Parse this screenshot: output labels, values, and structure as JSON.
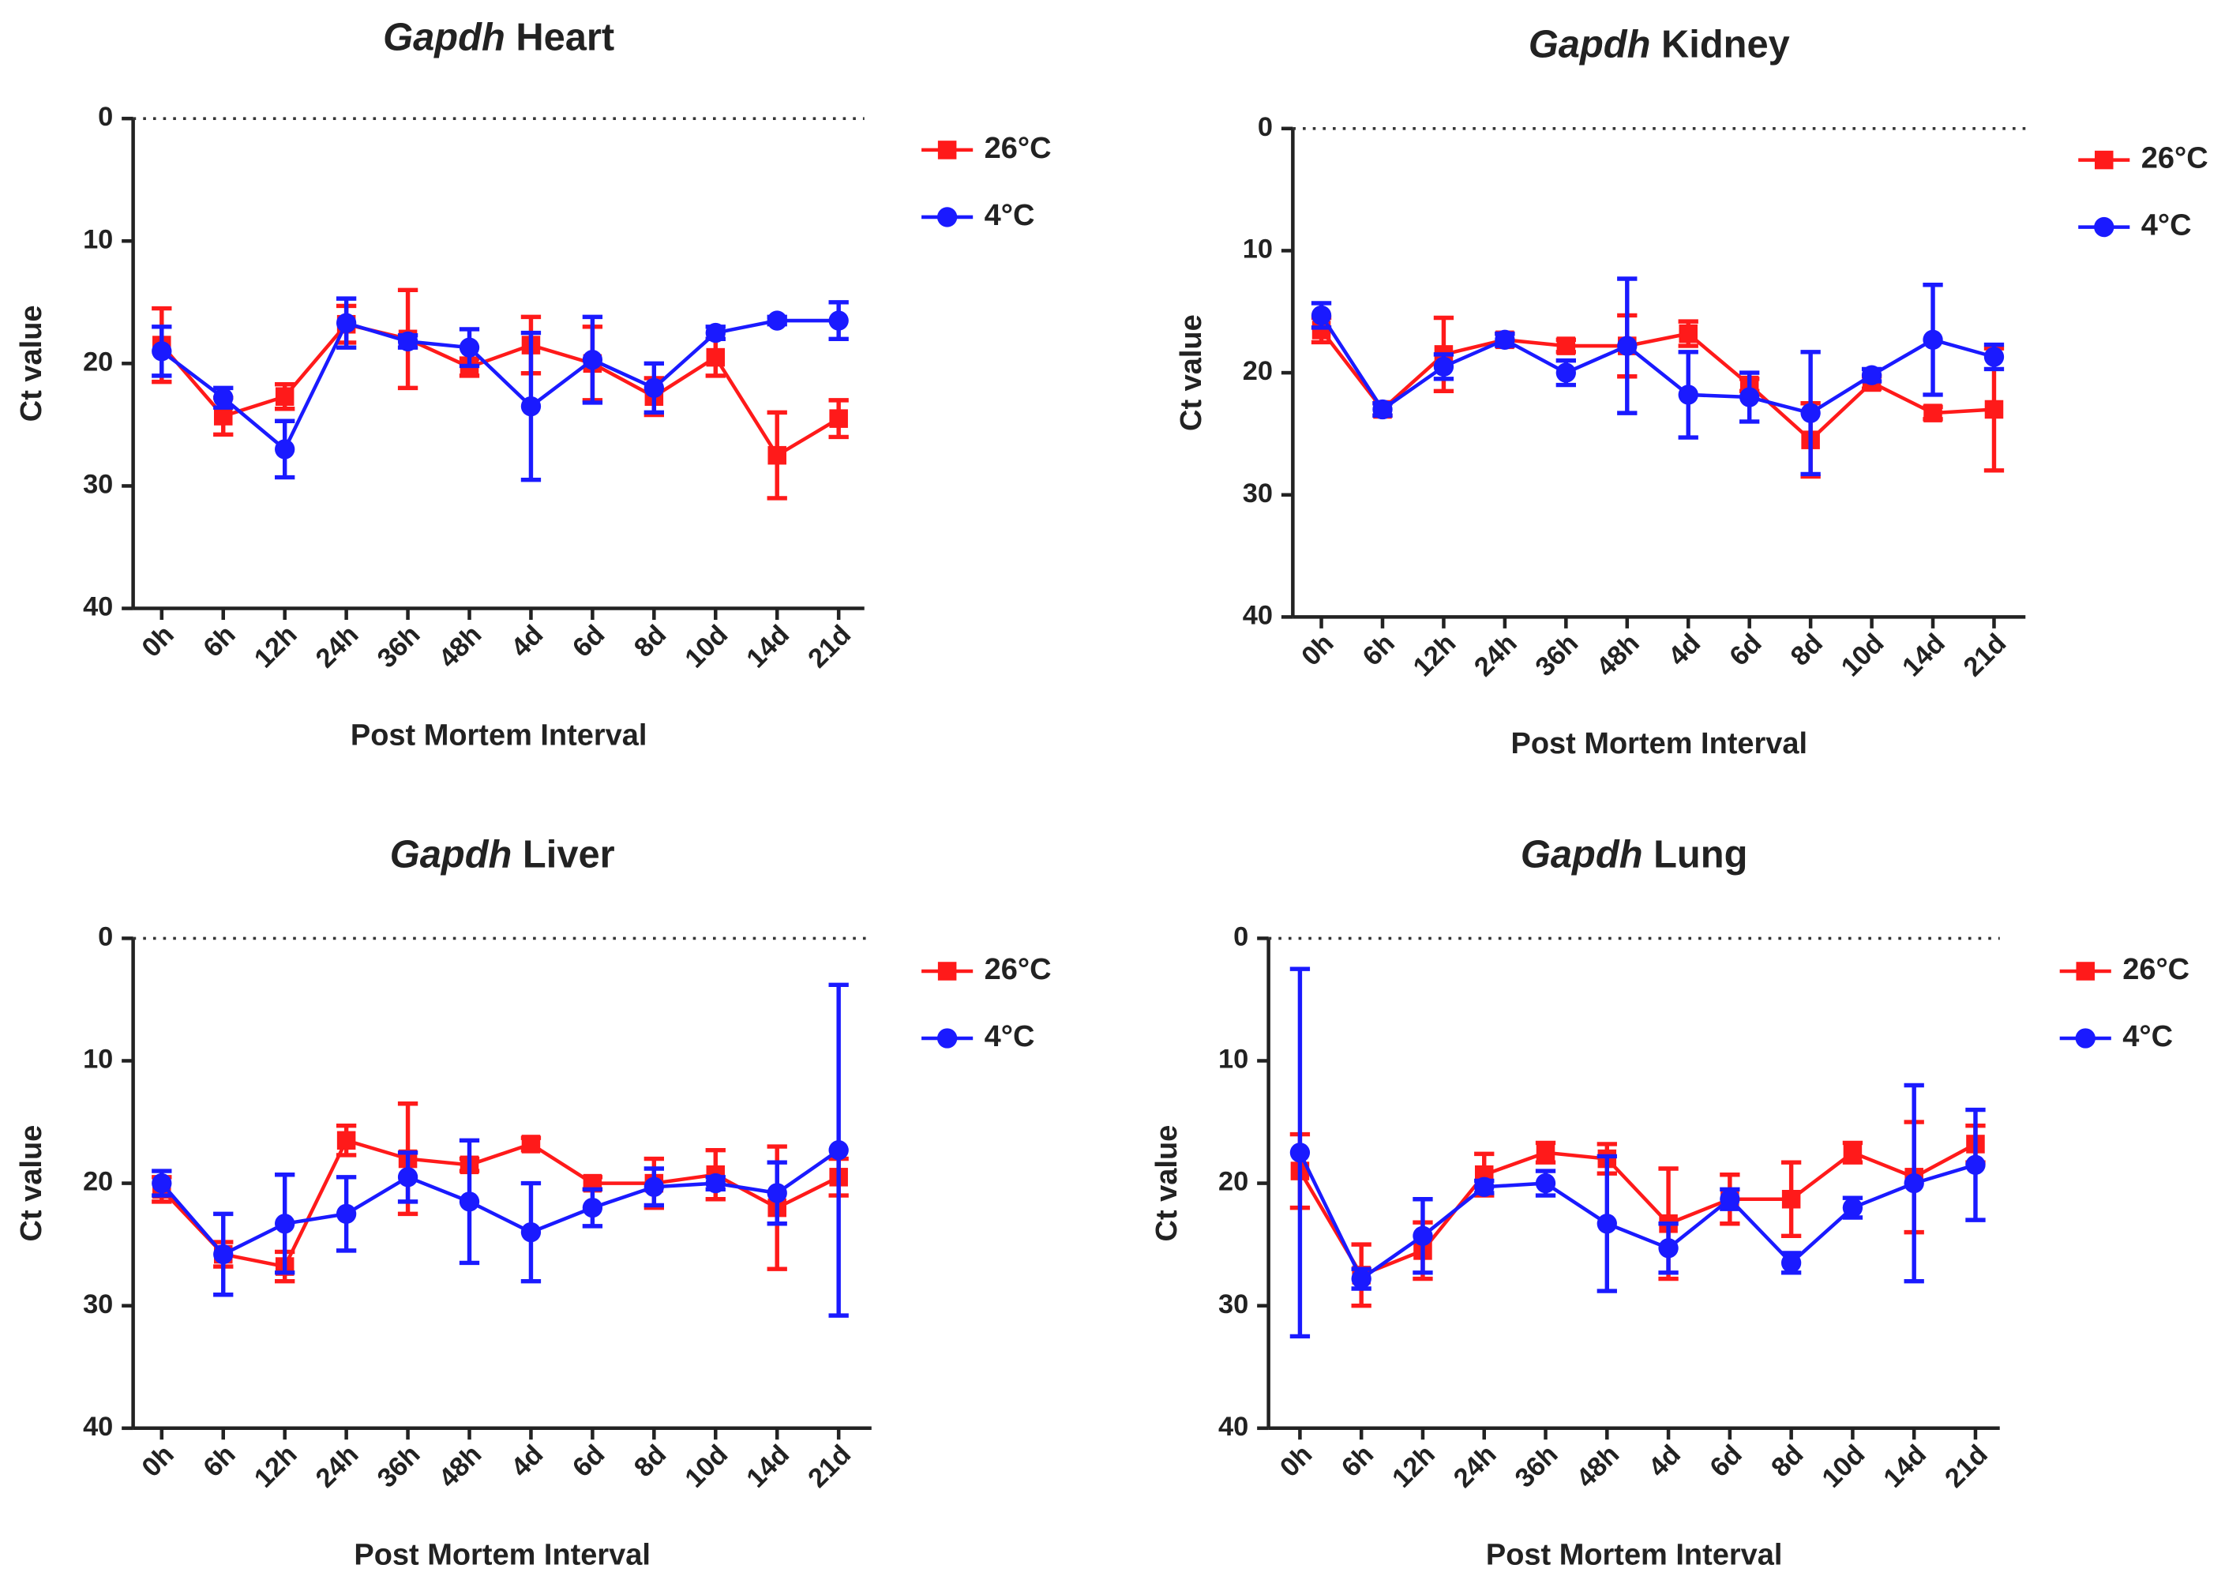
{
  "chart_data": [
    {
      "type": "line",
      "title": "Gapdh Heart",
      "x_label": "Post Mortem Interval",
      "y_label": "Ct value",
      "categories": [
        "0h",
        "6h",
        "12h",
        "24h",
        "36h",
        "48h",
        "4d",
        "6d",
        "8d",
        "10d",
        "14d",
        "21d"
      ],
      "ylim": [
        0,
        40
      ],
      "yticks": [
        0,
        10,
        20,
        30,
        40
      ],
      "y_inverted": true,
      "hline": 0,
      "series": [
        {
          "name": "26°C",
          "color": "#ff1a1a",
          "marker": "square",
          "values": [
            18.5,
            24.3,
            22.7,
            16.8,
            18,
            20.3,
            18.5,
            20,
            22.7,
            19.5,
            27.5,
            24.5
          ],
          "errors": [
            3,
            1.5,
            1,
            1.5,
            4,
            0.7,
            2.3,
            3,
            1.5,
            1.5,
            3.5,
            1.5
          ]
        },
        {
          "name": "4°C",
          "color": "#1a1aff",
          "marker": "circle",
          "values": [
            19,
            22.8,
            27,
            16.7,
            18.2,
            18.7,
            23.5,
            19.7,
            22,
            17.5,
            16.5,
            16.5
          ],
          "errors": [
            2,
            0.8,
            2.3,
            2,
            0.5,
            1.5,
            6,
            3.5,
            2,
            0.5,
            0.3,
            1.5
          ]
        }
      ]
    },
    {
      "type": "line",
      "title": "Gapdh Kidney",
      "x_label": "Post Mortem Interval",
      "y_label": "Ct value",
      "categories": [
        "0h",
        "6h",
        "12h",
        "24h",
        "36h",
        "48h",
        "4d",
        "6d",
        "8d",
        "10d",
        "14d",
        "21d"
      ],
      "ylim": [
        0,
        40
      ],
      "yticks": [
        0,
        10,
        20,
        30,
        40
      ],
      "y_inverted": true,
      "hline": 0,
      "series": [
        {
          "name": "26°C",
          "color": "#ff1a1a",
          "marker": "square",
          "values": [
            16.5,
            23,
            18.5,
            17.3,
            17.8,
            17.8,
            16.8,
            21,
            25.5,
            20.8,
            23.3,
            23
          ],
          "errors": [
            1,
            0.5,
            3,
            0.5,
            0.5,
            2.5,
            1,
            0.5,
            3,
            0.5,
            0.5,
            5
          ]
        },
        {
          "name": "4°C",
          "color": "#1a1aff",
          "marker": "circle",
          "values": [
            15.3,
            23,
            19.5,
            17.3,
            20,
            17.8,
            21.8,
            22,
            23.3,
            20.2,
            17.3,
            18.7
          ],
          "errors": [
            1,
            0.5,
            1,
            0.5,
            1,
            5.5,
            3.5,
            2,
            5,
            0.5,
            4.5,
            1
          ]
        }
      ]
    },
    {
      "type": "line",
      "title": "Gapdh Liver",
      "x_label": "Post Mortem Interval",
      "y_label": "Ct value",
      "categories": [
        "0h",
        "6h",
        "12h",
        "24h",
        "36h",
        "48h",
        "4d",
        "6d",
        "8d",
        "10d",
        "14d",
        "21d"
      ],
      "ylim": [
        0,
        40
      ],
      "yticks": [
        0,
        10,
        20,
        30,
        40
      ],
      "y_inverted": true,
      "hline": 0,
      "series": [
        {
          "name": "26°C",
          "color": "#ff1a1a",
          "marker": "square",
          "values": [
            20.5,
            25.8,
            26.8,
            16.5,
            18,
            18.5,
            16.8,
            20,
            20,
            19.3,
            22,
            19.5
          ],
          "errors": [
            1,
            1,
            1.2,
            1.2,
            4.5,
            0.5,
            0.5,
            0.5,
            2,
            2,
            5,
            1.5
          ]
        },
        {
          "name": "4°C",
          "color": "#1a1aff",
          "marker": "circle",
          "values": [
            20,
            25.8,
            23.3,
            22.5,
            19.5,
            21.5,
            24,
            22,
            20.3,
            20,
            20.8,
            17.3
          ],
          "errors": [
            1,
            3.3,
            4,
            3,
            2,
            5,
            4,
            1.5,
            1.5,
            0.5,
            2.5,
            13.5
          ]
        }
      ]
    },
    {
      "type": "line",
      "title": "Gapdh Lung",
      "x_label": "Post Mortem Interval",
      "y_label": "Ct value",
      "categories": [
        "0h",
        "6h",
        "12h",
        "24h",
        "36h",
        "48h",
        "4d",
        "6d",
        "8d",
        "10d",
        "14d",
        "21d"
      ],
      "ylim": [
        0,
        40
      ],
      "yticks": [
        0,
        10,
        20,
        30,
        40
      ],
      "y_inverted": true,
      "hline": 0,
      "series": [
        {
          "name": "26°C",
          "color": "#ff1a1a",
          "marker": "square",
          "values": [
            19,
            27.5,
            25.5,
            19.3,
            17.5,
            18,
            23.3,
            21.3,
            21.3,
            17.5,
            19.5,
            16.8
          ],
          "errors": [
            3,
            2.5,
            2.3,
            1.7,
            0.8,
            1.2,
            4.5,
            2,
            3,
            0.8,
            4.5,
            1.5
          ]
        },
        {
          "name": "4°C",
          "color": "#1a1aff",
          "marker": "circle",
          "values": [
            17.5,
            27.8,
            24.3,
            20.3,
            20,
            23.3,
            25.3,
            21.3,
            26.5,
            22,
            20,
            18.5
          ],
          "errors": [
            15,
            0.8,
            3,
            0.5,
            1,
            5.5,
            2,
            0.8,
            0.8,
            0.8,
            8,
            4.5
          ]
        }
      ]
    }
  ]
}
